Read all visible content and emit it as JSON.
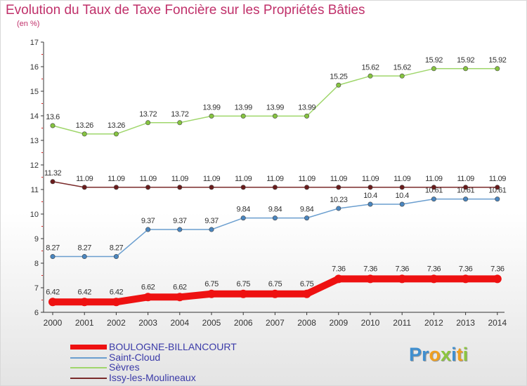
{
  "header": {
    "title": "Evolution du Taux de Taxe Foncière sur les Propriétés Bâties",
    "unit": "(en %)"
  },
  "colors": {
    "title": "#c0306a",
    "axis": "#333333",
    "tick_text": "#333333",
    "value_text": "#333333",
    "legend_text": "#3a3aa8"
  },
  "logo": {
    "letters": [
      {
        "char": "P",
        "color": "#3f8fd0"
      },
      {
        "char": "r",
        "color": "#3f8fd0"
      },
      {
        "char": "o",
        "color": "#f0a020"
      },
      {
        "char": "x",
        "color": "#8cc63f"
      },
      {
        "char": "i",
        "color": "#3f8fd0"
      },
      {
        "char": "t",
        "color": "#f0a020"
      },
      {
        "char": "i",
        "color": "#8cc63f"
      }
    ]
  },
  "chart_data": {
    "type": "line",
    "title": "Evolution du Taux de Taxe Foncière sur les Propriétés Bâties",
    "ylabel": "(en %)",
    "xlabel": "",
    "x": [
      "2000",
      "2001",
      "2002",
      "2003",
      "2004",
      "2005",
      "2006",
      "2007",
      "2008",
      "2009",
      "2010",
      "2011",
      "2012",
      "2013",
      "2014"
    ],
    "ylim": [
      6,
      17
    ],
    "yticks": [
      "6",
      "7",
      "8",
      "9",
      "10",
      "11",
      "12",
      "13",
      "14",
      "15",
      "16",
      "17"
    ],
    "grid": false,
    "legend_position": "bottom",
    "series": [
      {
        "name": "BOULOGNE-BILLANCOURT",
        "color": "#ee1111",
        "marker": "#ee1111",
        "bold": true,
        "values": [
          6.42,
          6.42,
          6.42,
          6.62,
          6.62,
          6.75,
          6.75,
          6.75,
          6.75,
          7.36,
          7.36,
          7.36,
          7.36,
          7.36,
          7.36
        ],
        "labels": [
          "6.42",
          "6.42",
          "6.42",
          "6.62",
          "6.62",
          "6.75",
          "6.75",
          "6.75",
          "6.75",
          "7.36",
          "7.36",
          "7.36",
          "7.36",
          "7.36",
          "7.36"
        ]
      },
      {
        "name": "Saint-Cloud",
        "color": "#6a9ecf",
        "marker": "#4a86c0",
        "values": [
          8.27,
          8.27,
          8.27,
          9.37,
          9.37,
          9.37,
          9.84,
          9.84,
          9.84,
          10.23,
          10.4,
          10.4,
          10.61,
          10.61,
          10.61
        ],
        "labels": [
          "8.27",
          "8.27",
          "8.27",
          "9.37",
          "9.37",
          "9.37",
          "9.84",
          "9.84",
          "9.84",
          "10.23",
          "10.4",
          "10.4",
          "10.61",
          "10.61",
          "10.61"
        ]
      },
      {
        "name": "Sèvres",
        "color": "#9fd66b",
        "marker": "#86c440",
        "values": [
          13.6,
          13.26,
          13.26,
          13.72,
          13.72,
          13.99,
          13.99,
          13.99,
          13.99,
          15.25,
          15.62,
          15.62,
          15.92,
          15.92,
          15.92
        ],
        "labels": [
          "13.6",
          "13.26",
          "13.26",
          "13.72",
          "13.72",
          "13.99",
          "13.99",
          "13.99",
          "13.99",
          "15.25",
          "15.62",
          "15.62",
          "15.92",
          "15.92",
          "15.92"
        ]
      },
      {
        "name": "Issy-les-Moulineaux",
        "color": "#7a2a2a",
        "marker": "#6a1c1c",
        "values": [
          11.32,
          11.09,
          11.09,
          11.09,
          11.09,
          11.09,
          11.09,
          11.09,
          11.09,
          11.09,
          11.09,
          11.09,
          11.09,
          11.09,
          11.09
        ],
        "labels": [
          "11.32",
          "11.09",
          "11.09",
          "11.09",
          "11.09",
          "11.09",
          "11.09",
          "11.09",
          "11.09",
          "11.09",
          "11.09",
          "11.09",
          "11.09",
          "11.09",
          "11.09"
        ]
      }
    ]
  }
}
